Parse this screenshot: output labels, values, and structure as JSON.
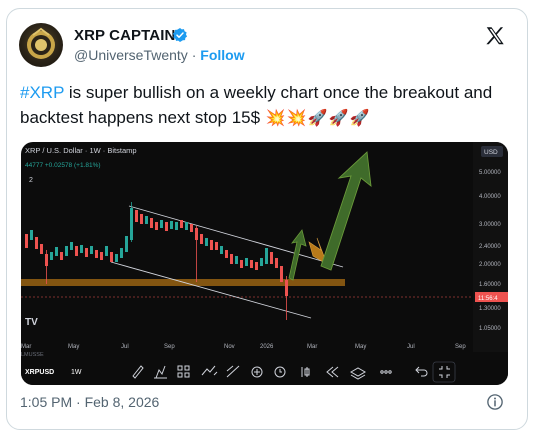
{
  "author": {
    "name": "XRP CAPTAIN",
    "handle": "@UniverseTwenty",
    "separator": "·",
    "follow_label": "Follow",
    "verified_icon": "verified-badge-icon",
    "brand_color": "#1d9bf0"
  },
  "tweet": {
    "hashtag": "#XRP",
    "text": " is super bullish on a weekly chart once the breakout and backtest happens next stop 15$",
    "emojis": [
      "💥",
      "💥",
      "🚀",
      "🚀",
      "🚀"
    ]
  },
  "chart": {
    "symbol_line": "XRP / U.S. Dollar · 1W · Bitstamp",
    "change": "44777  +0.02578 (+1.81%)",
    "indicator_count": "2",
    "currency": "USD",
    "price_labels": [
      "5.00000",
      "4.00000",
      "3.00000",
      "2.40000",
      "2.00000",
      "1.60000",
      "1.30000",
      "1.05000"
    ],
    "current_price": "11:56:4",
    "month_labels": [
      "Mar",
      "May",
      "Jul",
      "Sep",
      "Nov",
      "2026",
      "Mar",
      "May",
      "Jul",
      "Sep"
    ],
    "tv_logo": "TV",
    "ticker": "XRPUSD",
    "interval": "1W",
    "exchange_overlay": "LMUSSE",
    "toolbar_icons": [
      "pencil-icon",
      "indicators-icon",
      "templates-icon",
      "trend-icon",
      "lines-icon",
      "plus-icon",
      "alarm-icon",
      "bar-replay-icon",
      "rewind-icon",
      "layers-icon",
      "more-icon",
      "undo-icon",
      "fullscreen-icon"
    ],
    "colors": {
      "up": "#26a69a",
      "down": "#ef5350",
      "support": "#8a5a12",
      "arrow": "#3f6b2a"
    }
  },
  "footer": {
    "timestamp": "1:05 PM · Feb 8, 2026",
    "info_icon": "info-icon"
  }
}
